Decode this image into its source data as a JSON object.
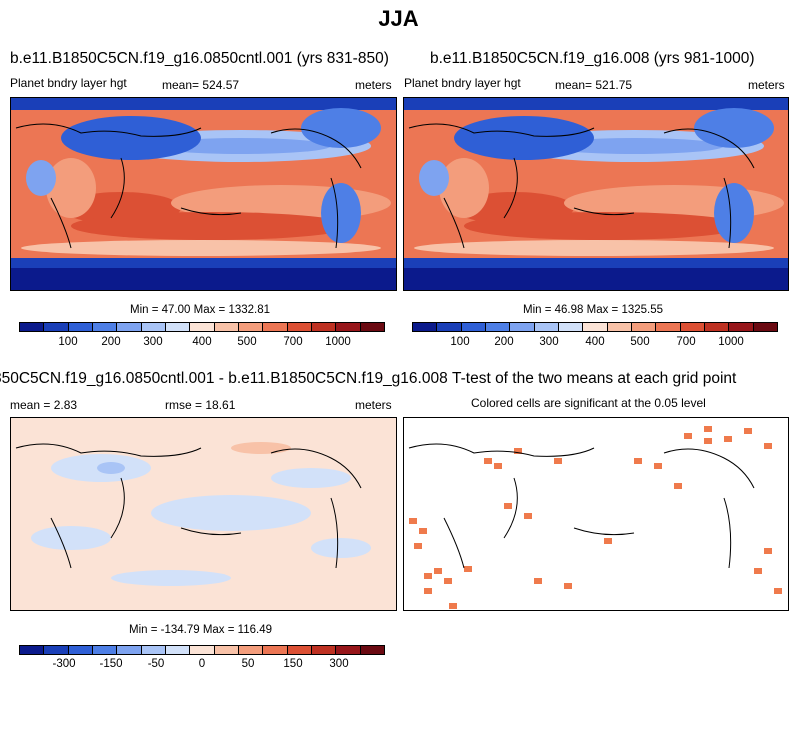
{
  "figure": {
    "title": "JJA"
  },
  "panels": [
    {
      "title": "b.e11.B1850C5CN.f19_g16.0850cntl.001 (yrs 831-850)",
      "left_label": "Planet bndry layer hgt",
      "center_label": "mean= 524.57",
      "right_label": "meters",
      "min_max": "Min = 47.00 Max = 1332.81",
      "colorbar_ticks": [
        "100",
        "200",
        "300",
        "400",
        "500",
        "700",
        "1000"
      ]
    },
    {
      "title": "b.e11.B1850C5CN.f19_g16.008 (yrs 981-1000)",
      "left_label": "Planet bndry layer hgt",
      "center_label": "mean= 521.75",
      "right_label": "meters",
      "min_max": "Min = 46.98 Max = 1325.55",
      "colorbar_ticks": [
        "100",
        "200",
        "300",
        "400",
        "500",
        "700",
        "1000"
      ]
    },
    {
      "title": "850C5CN.f19_g16.0850cntl.001 - b.e11.B1850C5CN.f19_g16.008",
      "left_label": "mean =   2.83",
      "center_label": "rmse =  18.61",
      "right_label": "meters",
      "min_max": "Min = -134.79 Max = 116.49",
      "colorbar_ticks": [
        "-300",
        "-150",
        "-50",
        "0",
        "50",
        "150",
        "300"
      ]
    },
    {
      "title": "T-test of the two means at each grid point",
      "subtitle": "Colored cells are significant at the 0.05 level"
    }
  ],
  "colors": {
    "abs_scale": [
      "#0b1a8c",
      "#1a3fb8",
      "#2f5fd6",
      "#4e7fe6",
      "#7ea3f0",
      "#a9c4f6",
      "#d2e1f9",
      "#fbe3d6",
      "#f8c2a8",
      "#f39d7c",
      "#ec7654",
      "#dc5034",
      "#be3122",
      "#97161a",
      "#6b0a12"
    ],
    "diff_scale": [
      "#0b1a8c",
      "#1a3fb8",
      "#2f5fd6",
      "#4e7fe6",
      "#7ea3f0",
      "#a9c4f6",
      "#d2e1f9",
      "#fbe3d6",
      "#f8c2a8",
      "#f39d7c",
      "#ec7654",
      "#dc5034",
      "#be3122",
      "#97161a",
      "#6b0a12"
    ],
    "significance": "#ef7a4c"
  }
}
